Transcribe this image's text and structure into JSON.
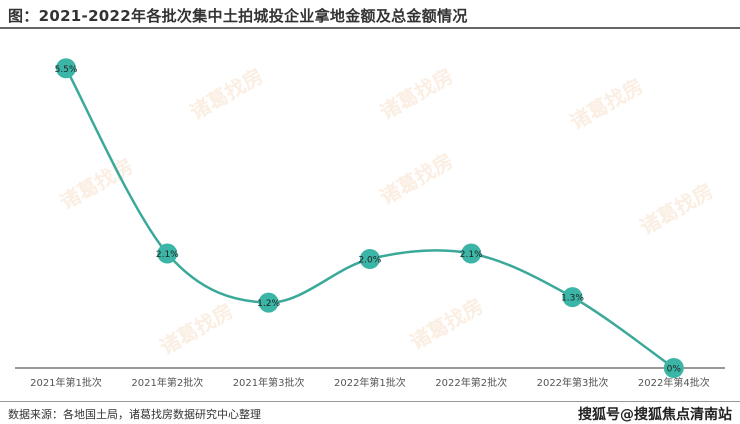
{
  "watermark_text": "诸葛找房",
  "credit": "搜狐号@搜狐焦点清南站",
  "source": "数据来源：各地国土局，诸葛找房数据研究中心整理",
  "chart_data": {
    "type": "line",
    "title": "图：2021-2022年各批次集中土拍城投企业拿地金额及总金额情况",
    "categories": [
      "2021年第1批次",
      "2021年第2批次",
      "2021年第3批次",
      "2022年第1批次",
      "2022年第2批次",
      "2022年第3批次",
      "2022年第4批次"
    ],
    "values": [
      5.5,
      2.1,
      1.2,
      2.0,
      2.1,
      1.3,
      0
    ],
    "data_labels": [
      "5.5%",
      "2.1%",
      "1.2%",
      "2.0%",
      "2.1%",
      "1.3%",
      "0%"
    ],
    "ylim": [
      0,
      6
    ],
    "grid": false,
    "smooth": true,
    "line_color": "#3aa99a",
    "marker_color": "#3bb5a6"
  }
}
